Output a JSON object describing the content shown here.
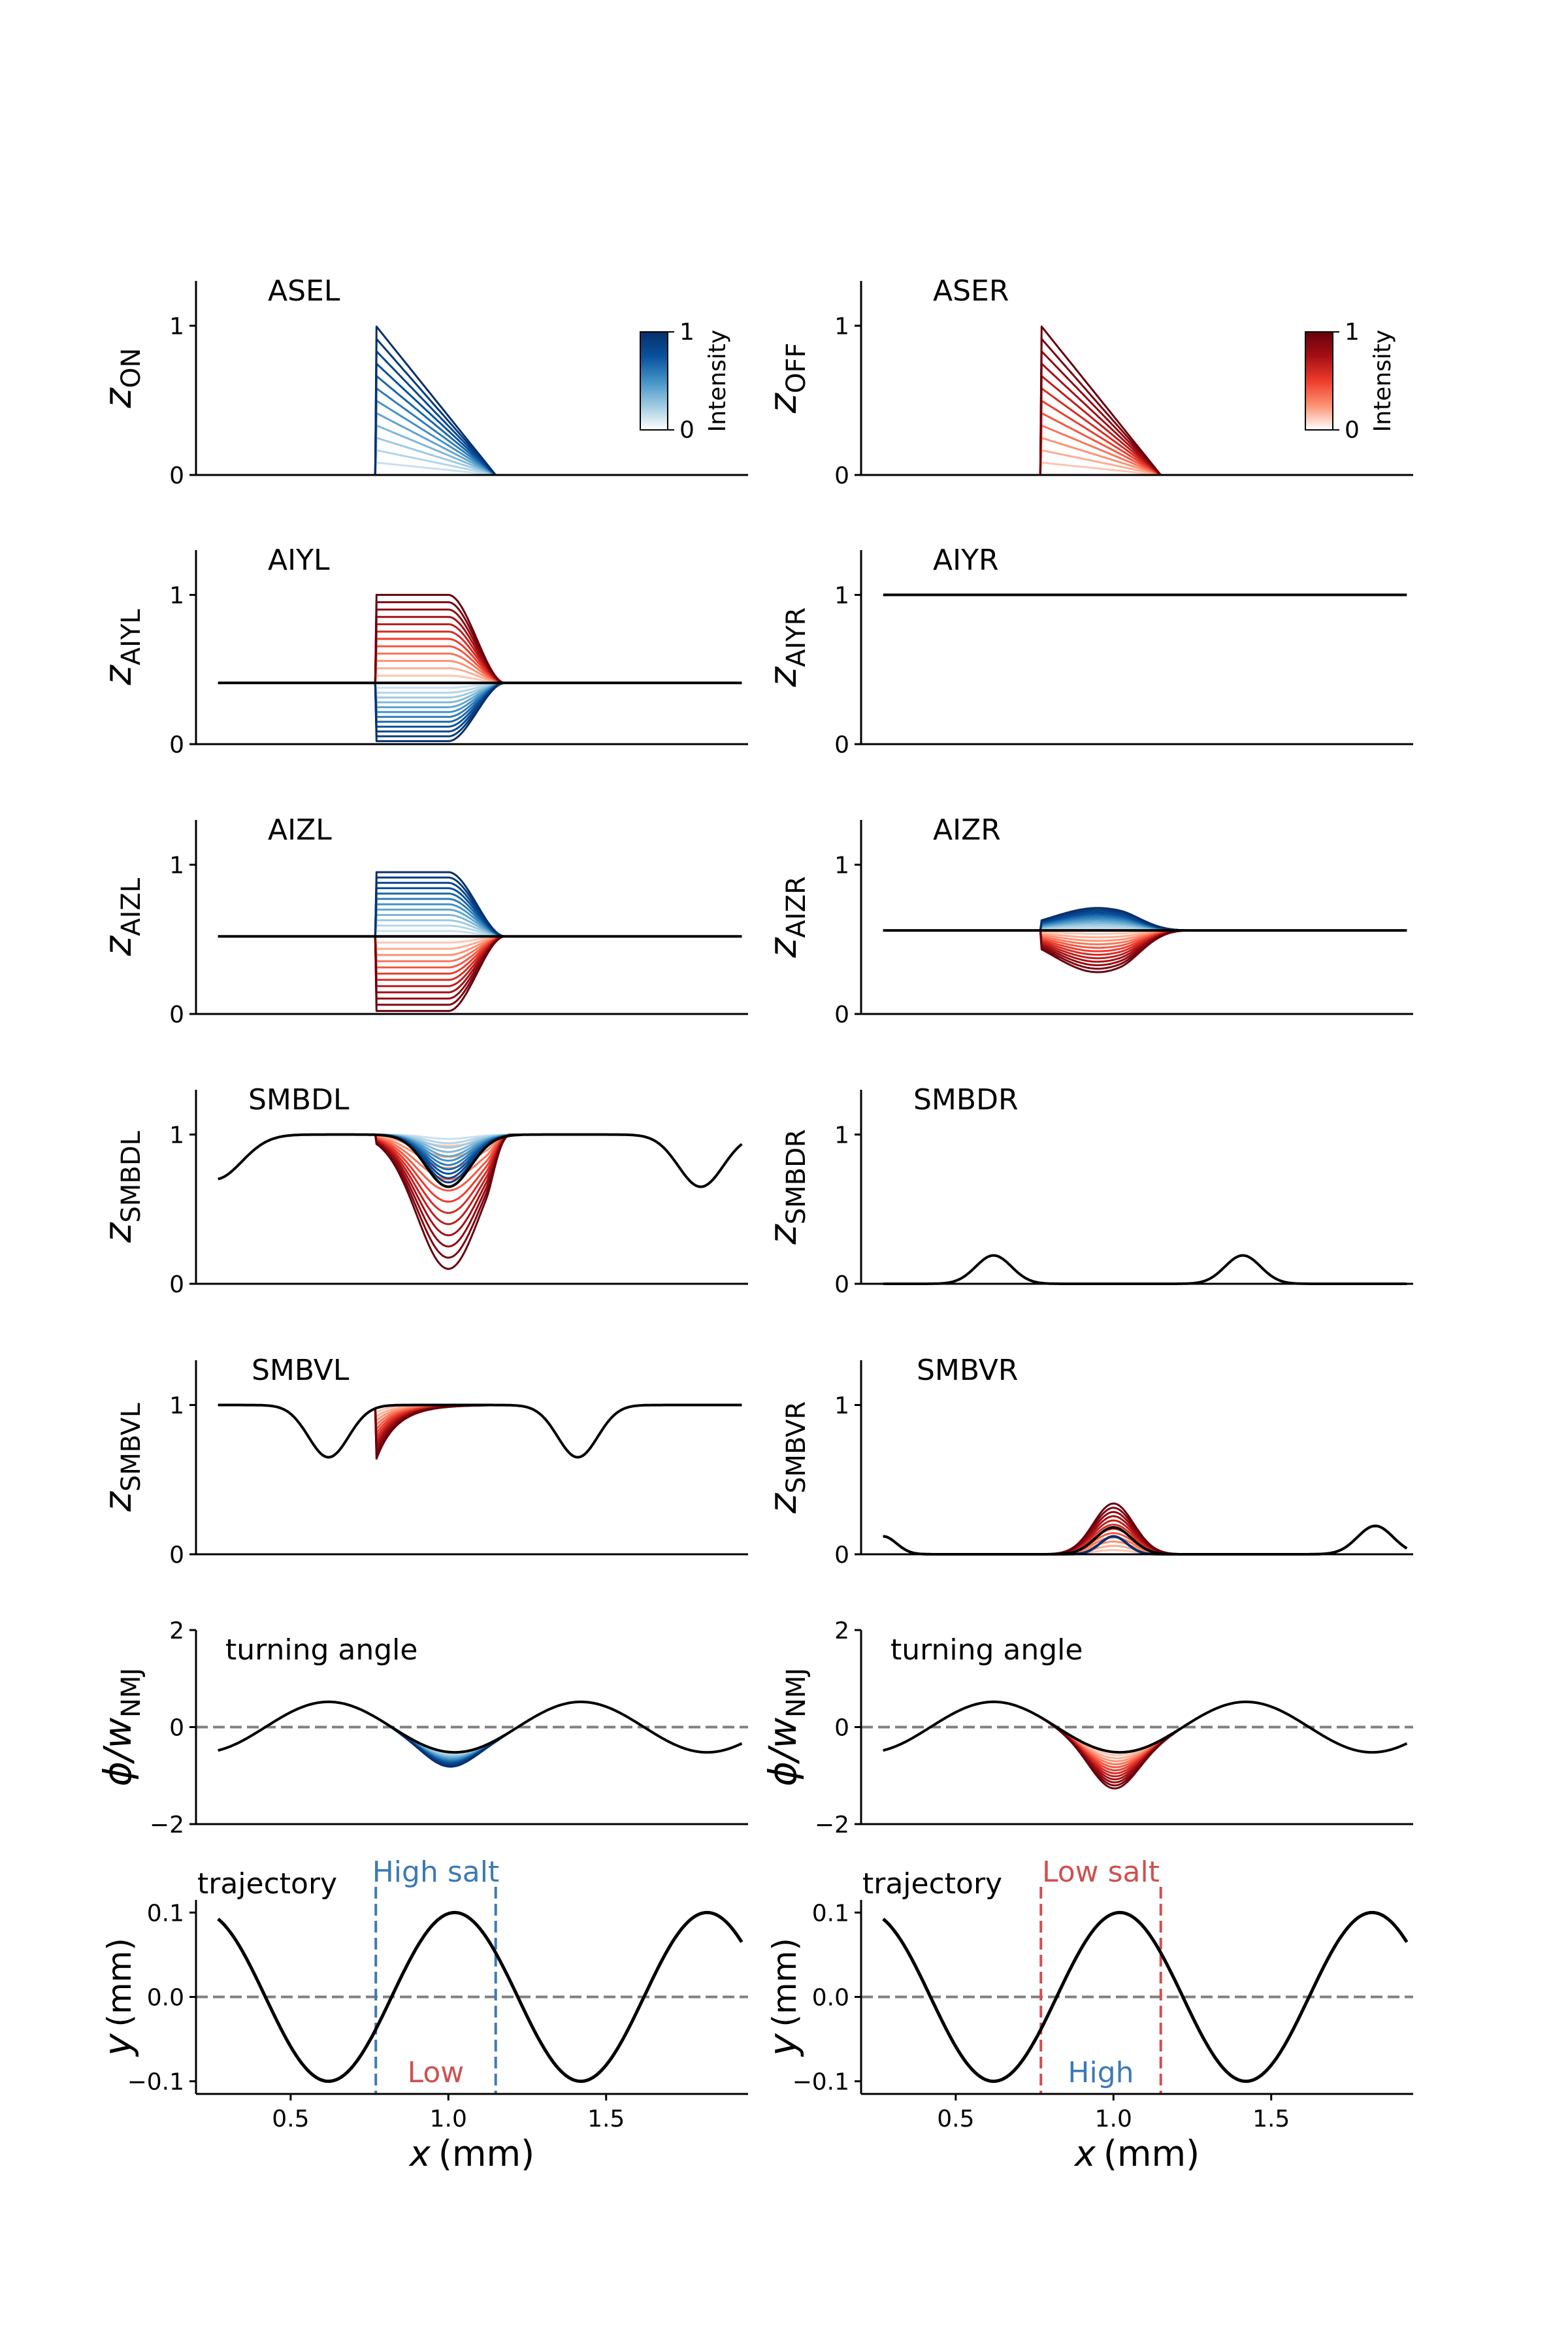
{
  "colorbars": {
    "on": {
      "tick_high": "1",
      "tick_low": "0",
      "label": "Intensity",
      "colormap": "Blues"
    },
    "off": {
      "tick_high": "1",
      "tick_low": "0",
      "label": "Intensity",
      "colormap": "Reds"
    }
  },
  "chart_data": [
    {
      "id": "asel",
      "type": "line",
      "title": "ASEL",
      "ylabel": {
        "main": "z",
        "sub": "ON"
      },
      "xlim": [
        0.2,
        1.95
      ],
      "ylim": [
        0,
        1.3
      ],
      "yticks": [
        0,
        1
      ],
      "ytick_labels": [
        "0",
        "1"
      ],
      "shape": "ramp",
      "family": "blues",
      "base": 0.0,
      "span": 1.0
    },
    {
      "id": "aser",
      "type": "line",
      "title": "ASER",
      "ylabel": {
        "main": "z",
        "sub": "OFF"
      },
      "xlim": [
        0.2,
        1.95
      ],
      "ylim": [
        0,
        1.3
      ],
      "yticks": [
        0,
        1
      ],
      "ytick_labels": [
        "0",
        "1"
      ],
      "shape": "ramp",
      "family": "reds",
      "base": 0.0,
      "span": 1.0
    },
    {
      "id": "aiyl",
      "type": "line",
      "title": "AIYL",
      "ylabel": {
        "main": "z",
        "sub": "AIYL"
      },
      "xlim": [
        0.2,
        1.95
      ],
      "ylim": [
        0,
        1.3
      ],
      "yticks": [
        0,
        1
      ],
      "ytick_labels": [
        "0",
        "1"
      ],
      "shape": "plateau",
      "family": "split",
      "base": 0.41,
      "up": 0.59,
      "down": 0.39,
      "up_family": "reds",
      "down_family": "blues"
    },
    {
      "id": "aiyr",
      "type": "line",
      "title": "AIYR",
      "ylabel": {
        "main": "z",
        "sub": "AIYR"
      },
      "xlim": [
        0.2,
        1.95
      ],
      "ylim": [
        0,
        1.3
      ],
      "yticks": [
        0,
        1
      ],
      "ytick_labels": [
        "0",
        "1"
      ],
      "shape": "flat",
      "base": 1.0
    },
    {
      "id": "aizl",
      "type": "line",
      "title": "AIZL",
      "ylabel": {
        "main": "z",
        "sub": "AIZL"
      },
      "xlim": [
        0.2,
        1.95
      ],
      "ylim": [
        0,
        1.3
      ],
      "yticks": [
        0,
        1
      ],
      "ytick_labels": [
        "0",
        "1"
      ],
      "shape": "plateau",
      "family": "split",
      "base": 0.52,
      "up": 0.43,
      "down": 0.5,
      "up_family": "blues",
      "down_family": "reds"
    },
    {
      "id": "aizr",
      "type": "line",
      "title": "AIZR",
      "ylabel": {
        "main": "z",
        "sub": "AIZR"
      },
      "xlim": [
        0.2,
        1.95
      ],
      "ylim": [
        0,
        1.3
      ],
      "yticks": [
        0,
        1
      ],
      "ytick_labels": [
        "0",
        "1"
      ],
      "shape": "smallbump",
      "family": "split",
      "base": 0.56,
      "up": 0.15,
      "down": 0.28,
      "up_family": "blues",
      "down_family": "reds"
    },
    {
      "id": "smbdl",
      "type": "line",
      "title": "SMBDL",
      "ylabel": {
        "main": "z",
        "sub": "SMBDL"
      },
      "xlim": [
        0.2,
        1.95
      ],
      "ylim": [
        0,
        1.3
      ],
      "yticks": [
        0,
        1
      ],
      "ytick_labels": [
        "0",
        "1"
      ],
      "shape": "smbdl",
      "family": "split",
      "up_family": "blues",
      "down_family": "reds"
    },
    {
      "id": "smbdr",
      "type": "line",
      "title": "SMBDR",
      "ylabel": {
        "main": "z",
        "sub": "SMBDR"
      },
      "xlim": [
        0.2,
        1.95
      ],
      "ylim": [
        0,
        1.3
      ],
      "yticks": [
        0,
        1
      ],
      "ytick_labels": [
        "0",
        "1"
      ],
      "shape": "smbdr"
    },
    {
      "id": "smbvl",
      "type": "line",
      "title": "SMBVL",
      "ylabel": {
        "main": "z",
        "sub": "SMBVL"
      },
      "xlim": [
        0.2,
        1.95
      ],
      "ylim": [
        0,
        1.3
      ],
      "yticks": [
        0,
        1
      ],
      "ytick_labels": [
        "0",
        "1"
      ],
      "shape": "smbvl",
      "family": "reds"
    },
    {
      "id": "smbvr",
      "type": "line",
      "title": "SMBVR",
      "ylabel": {
        "main": "z",
        "sub": "SMBVR"
      },
      "xlim": [
        0.2,
        1.95
      ],
      "ylim": [
        0,
        1.3
      ],
      "yticks": [
        0,
        1
      ],
      "ytick_labels": [
        "0",
        "1"
      ],
      "shape": "smbvr",
      "family": "split",
      "up_family": "reds",
      "down_family": "blues"
    },
    {
      "id": "turn_l",
      "type": "line",
      "title": "turning angle",
      "ylabel": {
        "main": "ϕ/w",
        "sub": "NMJ"
      },
      "xlim": [
        0.2,
        1.95
      ],
      "ylim": [
        -2,
        2
      ],
      "yticks": [
        -2,
        0,
        2
      ],
      "ytick_labels": [
        "−2",
        "0",
        "2"
      ],
      "shape": "turn",
      "family": "blues",
      "dip": 0.3,
      "zero_line": true
    },
    {
      "id": "turn_r",
      "type": "line",
      "title": "turning angle",
      "ylabel": {
        "main": "ϕ/w",
        "sub": "NMJ"
      },
      "xlim": [
        0.2,
        1.95
      ],
      "ylim": [
        -2,
        2
      ],
      "yticks": [
        -2,
        0,
        2
      ],
      "ytick_labels": [
        "−2",
        "0",
        "2"
      ],
      "shape": "turn",
      "family": "reds",
      "dip": 0.75,
      "zero_line": true
    },
    {
      "id": "traj_l",
      "type": "line",
      "title": "trajectory",
      "ylabel": {
        "main": "y",
        "sub": "",
        "unit": "(mm)"
      },
      "xlabel": {
        "main": "x",
        "unit": "(mm)"
      },
      "xlim": [
        0.2,
        1.95
      ],
      "ylim": [
        -0.115,
        0.115
      ],
      "xticks": [
        0.5,
        1.0,
        1.5
      ],
      "xtick_labels": [
        "0.5",
        "1.0",
        "1.5"
      ],
      "yticks": [
        -0.1,
        0.0,
        0.1
      ],
      "ytick_labels": [
        "−0.1",
        "0.0",
        "0.1"
      ],
      "shape": "trajectory",
      "zero_line": true,
      "region": {
        "x0": 0.77,
        "x1": 1.15,
        "color": "#3d7ab3",
        "label": "High salt",
        "outside_label": "Low",
        "outside_color": "#d05050"
      }
    },
    {
      "id": "traj_r",
      "type": "line",
      "title": "trajectory",
      "ylabel": {
        "main": "y",
        "sub": "",
        "unit": "(mm)"
      },
      "xlabel": {
        "main": "x",
        "unit": "(mm)"
      },
      "xlim": [
        0.2,
        1.95
      ],
      "ylim": [
        -0.115,
        0.115
      ],
      "xticks": [
        0.5,
        1.0,
        1.5
      ],
      "xtick_labels": [
        "0.5",
        "1.0",
        "1.5"
      ],
      "yticks": [
        -0.1,
        0.0,
        0.1
      ],
      "ytick_labels": [
        "−0.1",
        "0.0",
        "0.1"
      ],
      "shape": "trajectory",
      "zero_line": true,
      "region": {
        "x0": 0.77,
        "x1": 1.15,
        "color": "#d05050",
        "label": "Low salt",
        "outside_label": "High",
        "outside_color": "#3d7ab3"
      }
    }
  ]
}
